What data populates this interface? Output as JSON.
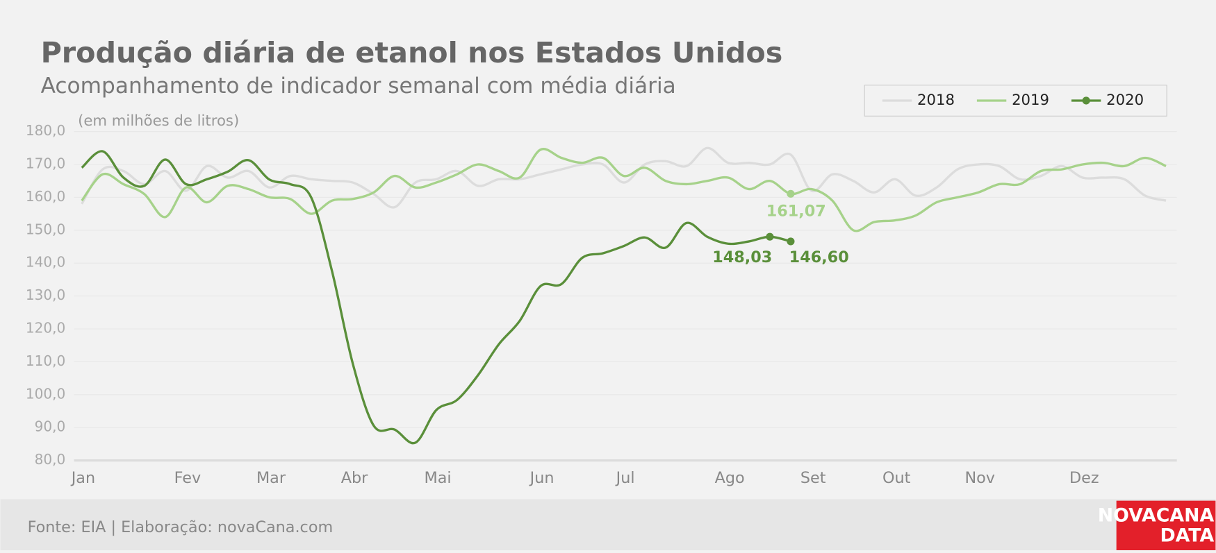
{
  "chart_data": {
    "type": "line",
    "title": "Produção diária de etanol nos Estados Unidos",
    "subtitle": "Acompanhamento de indicador semanal com média diária",
    "y_label": "(em milhões de litros)",
    "source": "Fonte: EIA | Elaboração: novaCana.com",
    "logo": [
      "NOVACANA",
      "DATA"
    ],
    "categories": [
      "Jan",
      null,
      null,
      null,
      null,
      "Fev",
      null,
      null,
      null,
      "Mar",
      null,
      null,
      null,
      "Abr",
      null,
      null,
      null,
      "Mai",
      null,
      null,
      null,
      null,
      "Jun",
      null,
      null,
      null,
      "Jul",
      null,
      null,
      null,
      null,
      "Ago",
      null,
      null,
      null,
      "Set",
      null,
      null,
      null,
      "Out",
      null,
      null,
      null,
      "Nov",
      null,
      null,
      null,
      null,
      "Dez",
      null,
      null,
      null,
      null
    ],
    "series": [
      {
        "name": "2018",
        "color": "#dcdcdc",
        "values": [
          158,
          168.5,
          168,
          164,
          168,
          162,
          169.5,
          166,
          168,
          163,
          166.5,
          165.5,
          165,
          164.5,
          161,
          157,
          164.5,
          165.5,
          168,
          163.5,
          165.5,
          165.5,
          167,
          168.5,
          170,
          170,
          164.5,
          170,
          171,
          169.5,
          175,
          170.5,
          170.5,
          170,
          173,
          162,
          167,
          165,
          161.5,
          165.5,
          160.5,
          163,
          168.5,
          170,
          169.5,
          165.5,
          166.5,
          169.5,
          166,
          166,
          165.5,
          160.5,
          159
        ]
      },
      {
        "name": "2019",
        "color": "#a6d28a",
        "values": [
          159,
          167,
          164,
          161,
          154,
          163,
          158.5,
          163.5,
          162.5,
          160,
          159.5,
          155,
          159,
          159.5,
          161.5,
          166.5,
          163,
          164.5,
          167,
          170,
          168,
          166,
          174.5,
          172,
          170.5,
          172,
          166.5,
          169,
          165,
          164,
          165,
          166,
          162.5,
          165,
          161.07,
          162.5,
          159,
          150,
          152.5,
          153,
          154.5,
          158.5,
          160,
          161.5,
          164,
          164,
          168,
          168.5,
          170,
          170.5,
          169.5,
          172,
          169.5
        ],
        "value_labels": [
          null,
          null,
          null,
          null,
          null,
          null,
          null,
          null,
          null,
          null,
          null,
          null,
          null,
          null,
          null,
          null,
          null,
          null,
          null,
          null,
          null,
          null,
          null,
          null,
          null,
          null,
          null,
          null,
          null,
          null,
          null,
          null,
          null,
          null,
          "161,07",
          null,
          null,
          null,
          null,
          null,
          null,
          null,
          null,
          null,
          null,
          null,
          null,
          null,
          null,
          null,
          null,
          null,
          null
        ]
      },
      {
        "name": "2020",
        "color": "#5a8f3a",
        "values": [
          169,
          174,
          166,
          163.5,
          171.5,
          164,
          165.5,
          167.8,
          171.3,
          165.4,
          164,
          160,
          137.6,
          109.4,
          90.6,
          89.4,
          85.4,
          95.3,
          98.4,
          105.9,
          115.3,
          122.4,
          133,
          133.6,
          141.6,
          143,
          145.2,
          147.8,
          144.7,
          152.2,
          148,
          145.9,
          146.6,
          148.03,
          146.6,
          null,
          null,
          null,
          null,
          null,
          null,
          null,
          null,
          null,
          null,
          null,
          null,
          null,
          null,
          null,
          null,
          null,
          null
        ],
        "value_labels": [
          null,
          null,
          null,
          null,
          null,
          null,
          null,
          null,
          null,
          null,
          null,
          null,
          null,
          null,
          null,
          null,
          null,
          null,
          null,
          null,
          null,
          null,
          null,
          null,
          null,
          null,
          null,
          null,
          null,
          null,
          null,
          null,
          null,
          "148,03",
          "146,60",
          null,
          null,
          null,
          null,
          null,
          null,
          null,
          null,
          null,
          null,
          null,
          null,
          null,
          null,
          null,
          null,
          null,
          null
        ]
      }
    ],
    "ylim": [
      80,
      180
    ],
    "yticks": [
      {
        "value": 80,
        "label": "80,0"
      },
      {
        "value": 90,
        "label": "90,0"
      },
      {
        "value": 100,
        "label": "100,0"
      },
      {
        "value": 110,
        "label": "110,0"
      },
      {
        "value": 120,
        "label": "120,0"
      },
      {
        "value": 130,
        "label": "130,0"
      },
      {
        "value": 140,
        "label": "140,0"
      },
      {
        "value": 150,
        "label": "150,0"
      },
      {
        "value": 160,
        "label": "160,0"
      },
      {
        "value": 170,
        "label": "170,0"
      },
      {
        "value": 180,
        "label": "180,0"
      }
    ],
    "grid": true,
    "legend": "top-right"
  }
}
